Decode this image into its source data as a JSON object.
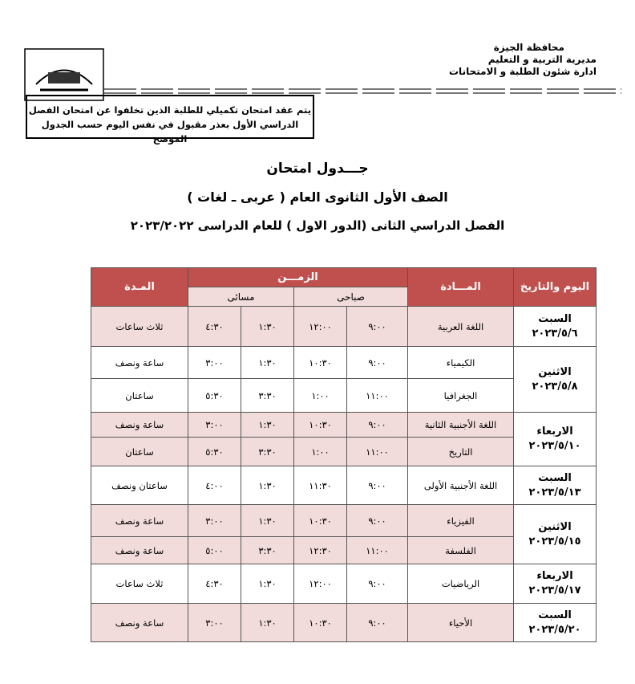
{
  "header": {
    "lines": [
      "محافظة الجيزة",
      "مديرية التربية و التعليم",
      "ادارة شئون الطلبة و الامتحانات"
    ]
  },
  "notice": [
    "يتم عقد امتحان تكميلي للطلبة الذين تخلفوا عن امتحان الفصل",
    "الدراسي الأول بعذر مقبول في نفس اليوم حسب الجدول الموضح"
  ],
  "titles": [
    "جـــدول امتحان",
    "الصف الأول الثانوى العام ( عربى ـ لغات )",
    "الفصل الدراسي الثانى (الدور الاول ) للعام الدراسى ٢٠٢٣/٢٠٢٢"
  ],
  "table": {
    "headers": {
      "day": "اليوم والتاريخ",
      "subject": "المـــادة",
      "time": "الزمـــن",
      "morning": "صباحى",
      "evening": "مسائى",
      "duration": "المـدة"
    },
    "days": [
      {
        "day": "السبت",
        "date": "٢٠٢٣/٥/٦",
        "rows": [
          {
            "subject": "اللغة العربية",
            "am_start": "٩:٠٠",
            "am_end": "١٢:٠٠",
            "pm_start": "١:٣٠",
            "pm_end": "٤:٣٠",
            "duration": "ثلاث ساعات"
          }
        ]
      },
      {
        "day": "الاثنين",
        "date": "٢٠٢٣/٥/٨",
        "rows": [
          {
            "subject": "الكيمياء",
            "am_start": "٩:٠٠",
            "am_end": "١٠:٣٠",
            "pm_start": "١:٣٠",
            "pm_end": "٣:٠٠",
            "duration": "ساعة ونصف"
          },
          {
            "subject": "الجغرافيا",
            "am_start": "١١:٠٠",
            "am_end": "١:٠٠",
            "pm_start": "٣:٣٠",
            "pm_end": "٥:٣٠",
            "duration": "ساعتان"
          }
        ]
      },
      {
        "day": "الاربعاء",
        "date": "٢٠٢٣/٥/١٠",
        "rows": [
          {
            "subject": "اللغة الأجنبية الثانية",
            "am_start": "٩:٠٠",
            "am_end": "١٠:٣٠",
            "pm_start": "١:٣٠",
            "pm_end": "٣:٠٠",
            "duration": "ساعة ونصف"
          },
          {
            "subject": "التاريخ",
            "am_start": "١١:٠٠",
            "am_end": "١:٠٠",
            "pm_start": "٣:٣٠",
            "pm_end": "٥:٣٠",
            "duration": "ساعتان"
          }
        ]
      },
      {
        "day": "السبت",
        "date": "٢٠٢٣/٥/١٣",
        "rows": [
          {
            "subject": "اللغة الأجنبية الأولى",
            "am_start": "٩:٠٠",
            "am_end": "١١:٣٠",
            "pm_start": "١:٣٠",
            "pm_end": "٤:٠٠",
            "duration": "ساعتان ونصف"
          }
        ]
      },
      {
        "day": "الاثنين",
        "date": "٢٠٢٣/٥/١٥",
        "rows": [
          {
            "subject": "الفيزياء",
            "am_start": "٩:٠٠",
            "am_end": "١٠:٣٠",
            "pm_start": "١:٣٠",
            "pm_end": "٣:٠٠",
            "duration": "ساعة ونصف"
          },
          {
            "subject": "الفلسفة",
            "am_start": "١١:٠٠",
            "am_end": "١٢:٣٠",
            "pm_start": "٣:٣٠",
            "pm_end": "٥:٠٠",
            "duration": "ساعة ونصف"
          }
        ]
      },
      {
        "day": "الاربعاء",
        "date": "٢٠٢٣/٥/١٧",
        "rows": [
          {
            "subject": "الرياضيات",
            "am_start": "٩:٠٠",
            "am_end": "١٢:٠٠",
            "pm_start": "١:٣٠",
            "pm_end": "٤:٣٠",
            "duration": "ثلاث ساعات"
          }
        ]
      },
      {
        "day": "السبت",
        "date": "٢٠٢٣/٥/٢٠",
        "rows": [
          {
            "subject": "الأحياء",
            "am_start": "٩:٠٠",
            "am_end": "١٠:٣٠",
            "pm_start": "١:٣٠",
            "pm_end": "٣:٠٠",
            "duration": "ساعة ونصف"
          }
        ]
      }
    ]
  }
}
